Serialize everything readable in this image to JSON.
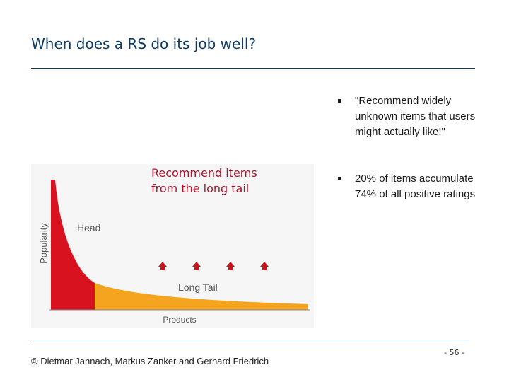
{
  "slide": {
    "title": "When does a RS do its job well?",
    "callout": [
      "Recommend items",
      "from the long tail"
    ],
    "bullets": [
      "\"Recommend widely unknown items that users might actually like!\"",
      "20% of items accumulate 74% of all positive ratings"
    ],
    "footer": "© Dietmar Jannach, Markus Zanker and Gerhard Friedrich",
    "page_number": "- 56 -"
  },
  "chart": {
    "ylabel": "Popularity",
    "xlabel": "Products",
    "head_label": "Head",
    "tail_label": "Long Tail",
    "arrow_count": 4,
    "colors": {
      "head": "#d8121f",
      "tail": "#f5a41f",
      "arrow": "#c4141c",
      "text": "#555555"
    }
  }
}
